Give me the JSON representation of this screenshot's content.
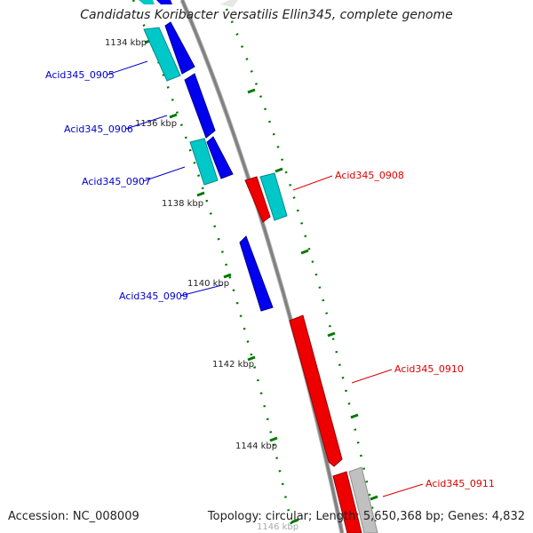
{
  "title": "Candidatus Koribacter versatilis Ellin345, complete genome",
  "footer": {
    "accession": "Accession: NC_008009",
    "topology": "Topology: circular; Length: 5,650,368 bp; Genes: 4,832"
  },
  "colors": {
    "forward_gene": "#ff0000",
    "reverse_gene": "#0000ee",
    "forward_other": "#00c8c8",
    "reverse_other": "#00c8c8",
    "pseudo": "#c0c0c0",
    "backbone": "#808080",
    "tick": "#007700",
    "forward_label": "#dd0000",
    "reverse_label": "#0000cc"
  },
  "ticks": [
    {
      "label": "1134 kbp"
    },
    {
      "label": "1136 kbp"
    },
    {
      "label": "1138 kbp"
    },
    {
      "label": "1140 kbp"
    },
    {
      "label": "1142 kbp"
    },
    {
      "label": "1144 kbp"
    },
    {
      "label": "1146 kbp"
    }
  ],
  "gene_labels": [
    {
      "text": "Acid345_0905",
      "strand": "reverse"
    },
    {
      "text": "Acid345_0906",
      "strand": "reverse"
    },
    {
      "text": "Acid345_0907",
      "strand": "reverse"
    },
    {
      "text": "Acid345_0908",
      "strand": "forward"
    },
    {
      "text": "Acid345_0909",
      "strand": "reverse"
    },
    {
      "text": "Acid345_0910",
      "strand": "forward"
    },
    {
      "text": "Acid345_0911",
      "strand": "forward"
    }
  ]
}
